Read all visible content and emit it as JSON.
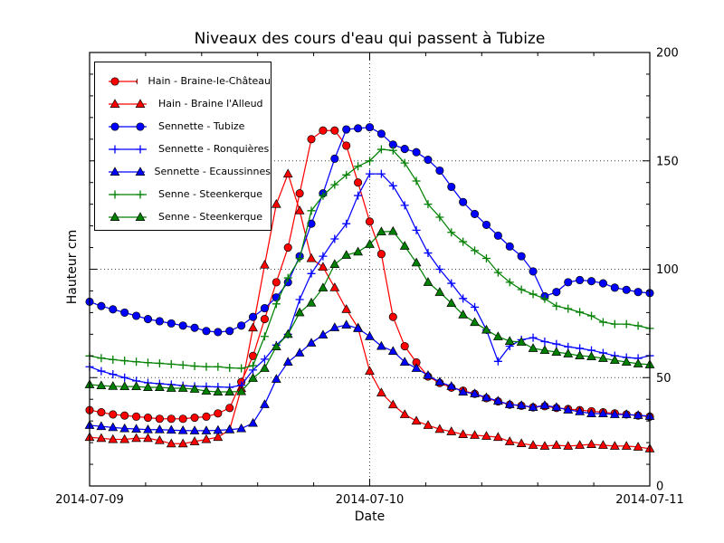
{
  "figure": {
    "title": "Niveaux des cours d'eau qui passent à Tubize",
    "xlabel": "Date",
    "ylabel": "Hauteur cm"
  },
  "chart_data": {
    "type": "line",
    "title": "Niveaux des cours d'eau qui passent à Tubize",
    "xlabel": "Date",
    "ylabel": "Hauteur cm",
    "x_description": "hourly measurements, 0 to 48 hours from 2014-07-09 00:00",
    "xlim": [
      0,
      48
    ],
    "ylim": [
      0,
      200
    ],
    "x_tick_hours": [
      0,
      24,
      48
    ],
    "x_tick_labels": [
      "2014-07-09",
      "2014-07-10",
      "2014-07-11"
    ],
    "x_minor_step_hours": 4.8,
    "y_ticks": [
      0,
      50,
      100,
      150,
      200
    ],
    "y_minor_step": 10,
    "grid": {
      "style": "dotted",
      "y_values": [
        50,
        100,
        150
      ],
      "x_hours": [
        24
      ]
    },
    "legend_position": "upper-left",
    "series": [
      {
        "name": "Hain - Braine-le-Château",
        "color": "#ff0000",
        "marker": "circle",
        "values": [
          35,
          34,
          33,
          32.5,
          32,
          31.5,
          31,
          31,
          31,
          31.5,
          32,
          33.5,
          36,
          48,
          60,
          77,
          94,
          110,
          135,
          160,
          164,
          164,
          157,
          140,
          122,
          107,
          78,
          64.5,
          57,
          50.5,
          47.5,
          45.4,
          44,
          42.5,
          40.5,
          39,
          37.5,
          37,
          36.3,
          36.8,
          36,
          35.5,
          35,
          34.5,
          34,
          33.5,
          33,
          32.5,
          32
        ]
      },
      {
        "name": "Hain - Braine l'Alleud",
        "color": "#ff0000",
        "marker": "triangle",
        "values": [
          22.5,
          22,
          21.5,
          21.5,
          22,
          22,
          21,
          19.5,
          19.5,
          20.5,
          21.5,
          22.5,
          26,
          45,
          73,
          102,
          130,
          144,
          127,
          105,
          101,
          91.5,
          81.5,
          73,
          53,
          43,
          37.5,
          33,
          30,
          28,
          26.2,
          25.1,
          23.8,
          23.4,
          23,
          22.5,
          20.5,
          19.6,
          18.8,
          18.4,
          18.8,
          18.4,
          18.8,
          19.2,
          18.8,
          18.4,
          18.4,
          18,
          17.2
        ]
      },
      {
        "name": "Sennette - Tubize",
        "color": "#0000ff",
        "marker": "circle",
        "values": [
          85,
          83,
          81.5,
          80,
          78.5,
          77,
          76,
          75,
          74,
          73,
          71.5,
          71,
          71.5,
          74,
          78,
          82,
          87,
          94,
          106,
          121,
          135,
          151,
          164.5,
          165,
          165.5,
          162.5,
          157.5,
          155.5,
          154,
          150.5,
          145.5,
          138,
          131,
          125.5,
          120.5,
          115.5,
          110.5,
          106,
          99,
          87.5,
          89.5,
          94,
          95,
          94.5,
          93.5,
          91.5,
          90.5,
          89.5,
          89
        ]
      },
      {
        "name": "Sennette - Ronquières",
        "color": "#0000ff",
        "marker": "plus",
        "values": [
          55,
          53,
          51.5,
          50,
          48.5,
          47.6,
          47.2,
          46.8,
          46.3,
          46,
          45.9,
          45.7,
          45.5,
          46.5,
          53.5,
          58.5,
          65,
          70,
          86,
          98,
          106,
          114,
          121,
          134,
          144,
          144,
          138.5,
          129.5,
          118,
          107.5,
          100,
          93.5,
          86.5,
          82.5,
          72,
          57.5,
          64.5,
          67.5,
          68.4,
          66.6,
          65.5,
          64.2,
          63.5,
          62.6,
          61.4,
          60.1,
          59.3,
          58.9,
          60.1
        ]
      },
      {
        "name": "Sennette - Ecaussinnes",
        "color": "#0000ff",
        "marker": "triangle",
        "values": [
          28,
          27.5,
          27,
          26.5,
          26.3,
          26,
          26,
          25.8,
          25.6,
          25.5,
          25.5,
          25.7,
          26,
          26.5,
          29,
          37.6,
          49.3,
          57.2,
          61.4,
          66,
          69.7,
          73.1,
          74.3,
          72.7,
          69,
          64.5,
          62.2,
          57.2,
          54.3,
          51,
          48,
          46,
          43.4,
          42.6,
          40.8,
          39.2,
          37.6,
          37.2,
          36.3,
          37.2,
          36.3,
          35.1,
          34.3,
          33.4,
          33.4,
          33,
          33,
          32.6,
          32.2
        ]
      },
      {
        "name": "Senne - Steenkerque",
        "color": "#008000",
        "marker": "plus",
        "values": [
          60,
          59,
          58.3,
          57.8,
          57.3,
          56.9,
          56.6,
          56.2,
          55.8,
          55.3,
          55,
          55,
          54.5,
          54.3,
          55.5,
          69,
          84,
          96,
          105,
          127,
          134,
          139,
          143.5,
          147.5,
          150,
          155.3,
          154.8,
          149,
          140.7,
          130,
          124,
          117,
          112.7,
          108.6,
          105,
          98.5,
          94,
          90.6,
          88.5,
          86.4,
          83,
          81.8,
          80.2,
          78.5,
          75.6,
          74.7,
          74.7,
          73.9,
          72.7
        ]
      },
      {
        "name": "Senne - Steenkerque",
        "color": "#008000",
        "marker": "triangle",
        "values": [
          46.8,
          46.3,
          46,
          45.9,
          45.9,
          45.5,
          45.5,
          45.1,
          45.1,
          44.7,
          43.8,
          43.4,
          43.4,
          43.6,
          49.7,
          54.3,
          64.3,
          70,
          80,
          84.5,
          91.4,
          102.3,
          106.5,
          108,
          111.5,
          117.3,
          117.5,
          110.7,
          103,
          94,
          89.4,
          84.3,
          79,
          75.5,
          72,
          68.9,
          66.8,
          66.4,
          63.5,
          62.6,
          61.8,
          61,
          60.1,
          59.7,
          58.9,
          58,
          57.2,
          56.4,
          56
        ]
      }
    ]
  }
}
